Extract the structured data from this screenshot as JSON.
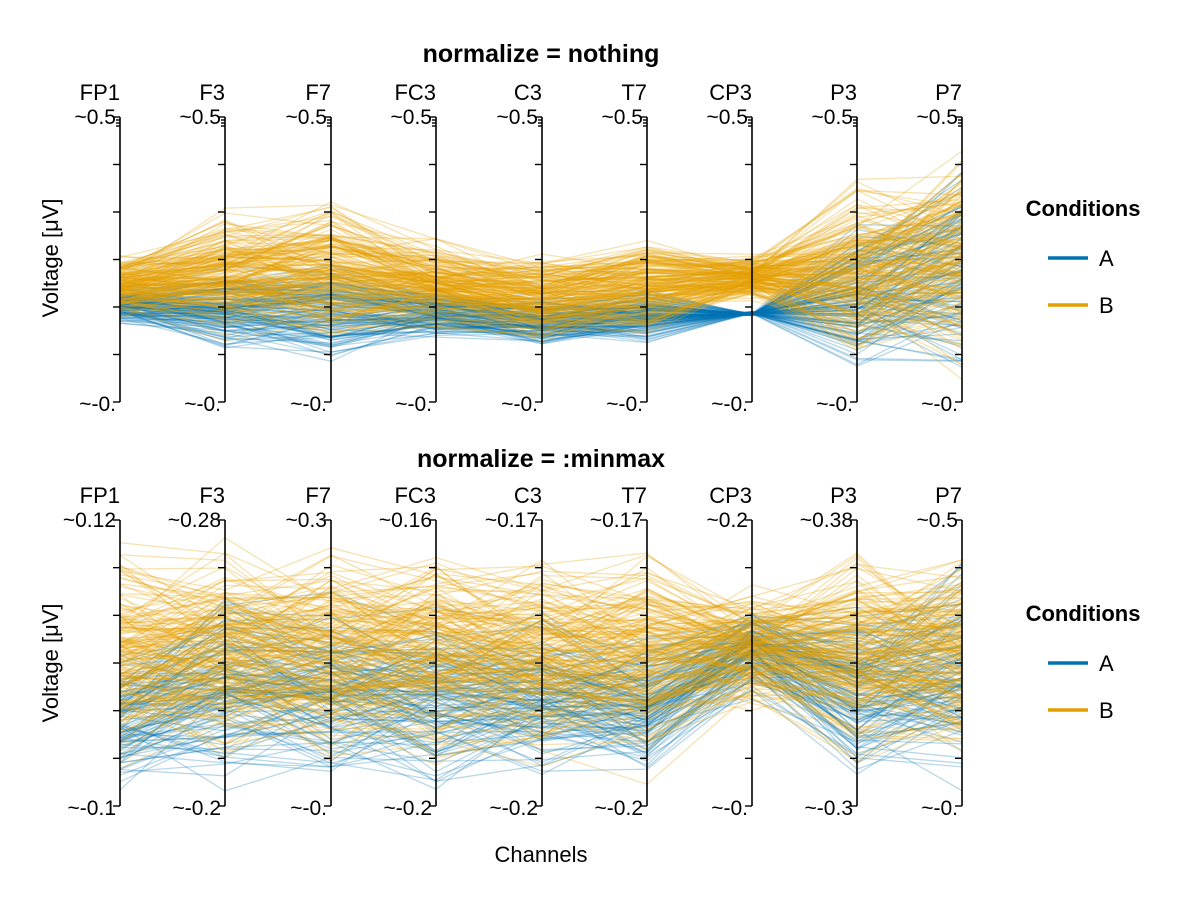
{
  "chart_data": [
    {
      "type": "parallel-coordinates",
      "title": "normalize = nothing",
      "ylabel": "Voltage [μV]",
      "xlabel": "",
      "axes": [
        {
          "name": "FP1",
          "top_label": "~0.5",
          "bottom_label": "~-0."
        },
        {
          "name": "F3",
          "top_label": "~0.5",
          "bottom_label": "~-0."
        },
        {
          "name": "F7",
          "top_label": "~0.5",
          "bottom_label": "~-0."
        },
        {
          "name": "FC3",
          "top_label": "~0.5",
          "bottom_label": "~-0."
        },
        {
          "name": "C3",
          "top_label": "~0.5",
          "bottom_label": "~-0."
        },
        {
          "name": "T7",
          "top_label": "~0.5",
          "bottom_label": "~-0."
        },
        {
          "name": "CP3",
          "top_label": "~0.5",
          "bottom_label": "~-0."
        },
        {
          "name": "P3",
          "top_label": "~0.5",
          "bottom_label": "~-0."
        },
        {
          "name": "P7",
          "top_label": "~0.5",
          "bottom_label": "~-0."
        }
      ],
      "shared_scale": true,
      "ylim": [
        0,
        0.5
      ],
      "series": [
        {
          "name": "A",
          "color": "#0072b2",
          "envelope_low": [
            0.13,
            0.06,
            0.05,
            0.1,
            0.08,
            0.09,
            0.16,
            0.01,
            0.0
          ],
          "envelope_high": [
            0.21,
            0.26,
            0.27,
            0.21,
            0.2,
            0.21,
            0.15,
            0.34,
            0.45
          ]
        },
        {
          "name": "B",
          "color": "#e69f00",
          "envelope_low": [
            0.14,
            0.08,
            0.07,
            0.12,
            0.09,
            0.1,
            0.17,
            0.02,
            0.01
          ],
          "envelope_high": [
            0.27,
            0.37,
            0.39,
            0.3,
            0.28,
            0.31,
            0.27,
            0.42,
            0.5
          ]
        }
      ],
      "legend": {
        "title": "Conditions",
        "position": "right"
      }
    },
    {
      "type": "parallel-coordinates",
      "title": "normalize = :minmax",
      "ylabel": "Voltage [μV]",
      "xlabel": "Channels",
      "axes": [
        {
          "name": "FP1",
          "top_label": "~0.12",
          "bottom_label": "~-0.1"
        },
        {
          "name": "F3",
          "top_label": "~0.28",
          "bottom_label": "~-0.2"
        },
        {
          "name": "F7",
          "top_label": "~0.3",
          "bottom_label": "~-0."
        },
        {
          "name": "FC3",
          "top_label": "~0.16",
          "bottom_label": "~-0.2"
        },
        {
          "name": "C3",
          "top_label": "~0.17",
          "bottom_label": "~-0.2"
        },
        {
          "name": "T7",
          "top_label": "~0.17",
          "bottom_label": "~-0.2"
        },
        {
          "name": "CP3",
          "top_label": "~0.2",
          "bottom_label": "~-0."
        },
        {
          "name": "P3",
          "top_label": "~0.38",
          "bottom_label": "~-0.3"
        },
        {
          "name": "P7",
          "top_label": "~0.5",
          "bottom_label": "~-0."
        }
      ],
      "shared_scale": false,
      "normalized_range": [
        0,
        1
      ],
      "series": [
        {
          "name": "A",
          "color": "#0072b2",
          "envelope_low": [
            0.0,
            0.0,
            0.0,
            0.0,
            0.0,
            0.0,
            0.35,
            0.0,
            0.0
          ],
          "envelope_high": [
            0.6,
            0.85,
            0.8,
            0.75,
            0.75,
            0.7,
            0.75,
            0.8,
            0.95
          ]
        },
        {
          "name": "B",
          "color": "#e69f00",
          "envelope_low": [
            0.05,
            0.05,
            0.05,
            0.05,
            0.05,
            0.05,
            0.3,
            0.05,
            0.05
          ],
          "envelope_high": [
            1.0,
            1.0,
            1.0,
            1.0,
            1.0,
            1.0,
            0.8,
            1.0,
            1.0
          ]
        }
      ],
      "legend": {
        "title": "Conditions",
        "position": "right"
      }
    }
  ]
}
